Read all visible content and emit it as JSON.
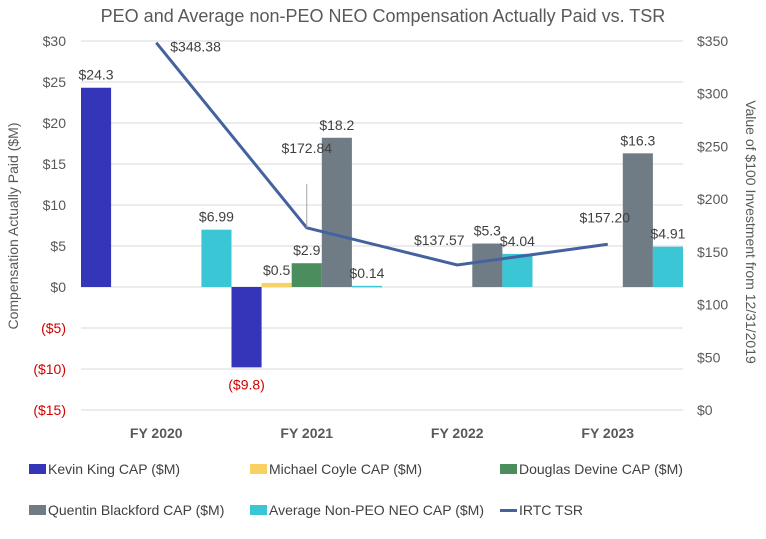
{
  "chart_data": {
    "type": "bar",
    "title": "PEO and Average non-PEO NEO Compensation Actually Paid vs. TSR",
    "categories": [
      "FY 2020",
      "FY 2021",
      "FY 2022",
      "FY 2023"
    ],
    "ylabel": "Compensation Actually Paid ($M)",
    "y2label": "Value of $100 Investment from 12/31/2019",
    "ylim": [
      -15,
      30
    ],
    "y2lim": [
      0,
      350
    ],
    "yticks": [
      "$30",
      "$25",
      "$20",
      "$15",
      "$10",
      "$5",
      "$0",
      "($5)",
      "($10)",
      "($15)"
    ],
    "ytick_values": [
      30,
      25,
      20,
      15,
      10,
      5,
      0,
      -5,
      -10,
      -15
    ],
    "y2ticks": [
      "$350",
      "$300",
      "$250",
      "$200",
      "$150",
      "$100",
      "$50",
      "$0"
    ],
    "y2tick_values": [
      350,
      300,
      250,
      200,
      150,
      100,
      50,
      0
    ],
    "grid": true,
    "legend_placement": "bottom",
    "negative_tick_color": "#d00000",
    "series": [
      {
        "name": "Kevin King CAP ($M)",
        "type": "bar",
        "color": "#3535b9",
        "values": [
          24.3,
          -9.8,
          null,
          null
        ],
        "labels": [
          "$24.3",
          "($9.8)",
          "",
          ""
        ]
      },
      {
        "name": "Michael Coyle CAP ($M)",
        "type": "bar",
        "color": "#f7d262",
        "values": [
          null,
          0.5,
          null,
          null
        ],
        "labels": [
          "",
          "$0.5",
          "",
          ""
        ]
      },
      {
        "name": "Douglas Devine CAP ($M)",
        "type": "bar",
        "color": "#4b8d5d",
        "values": [
          null,
          2.9,
          null,
          null
        ],
        "labels": [
          "",
          "$2.9",
          "",
          ""
        ]
      },
      {
        "name": "Quentin Blackford CAP ($M)",
        "type": "bar",
        "color": "#6f7c86",
        "values": [
          null,
          18.2,
          5.3,
          16.3
        ],
        "labels": [
          "",
          "$18.2",
          "$5.3",
          "$16.3"
        ]
      },
      {
        "name": "Average Non-PEO NEO CAP ($M)",
        "type": "bar",
        "color": "#3ac6d5",
        "values": [
          6.99,
          0.14,
          4.04,
          4.91
        ],
        "labels": [
          "$6.99",
          "$0.14",
          "$4.04",
          "$4.91"
        ]
      },
      {
        "name": "IRTC TSR",
        "type": "line",
        "axis": "right",
        "color": "#4462a0",
        "values": [
          348.38,
          172.84,
          137.57,
          157.2
        ],
        "labels": [
          "$348.38",
          "$172.84",
          "$137.57",
          "$157.20"
        ]
      }
    ]
  }
}
